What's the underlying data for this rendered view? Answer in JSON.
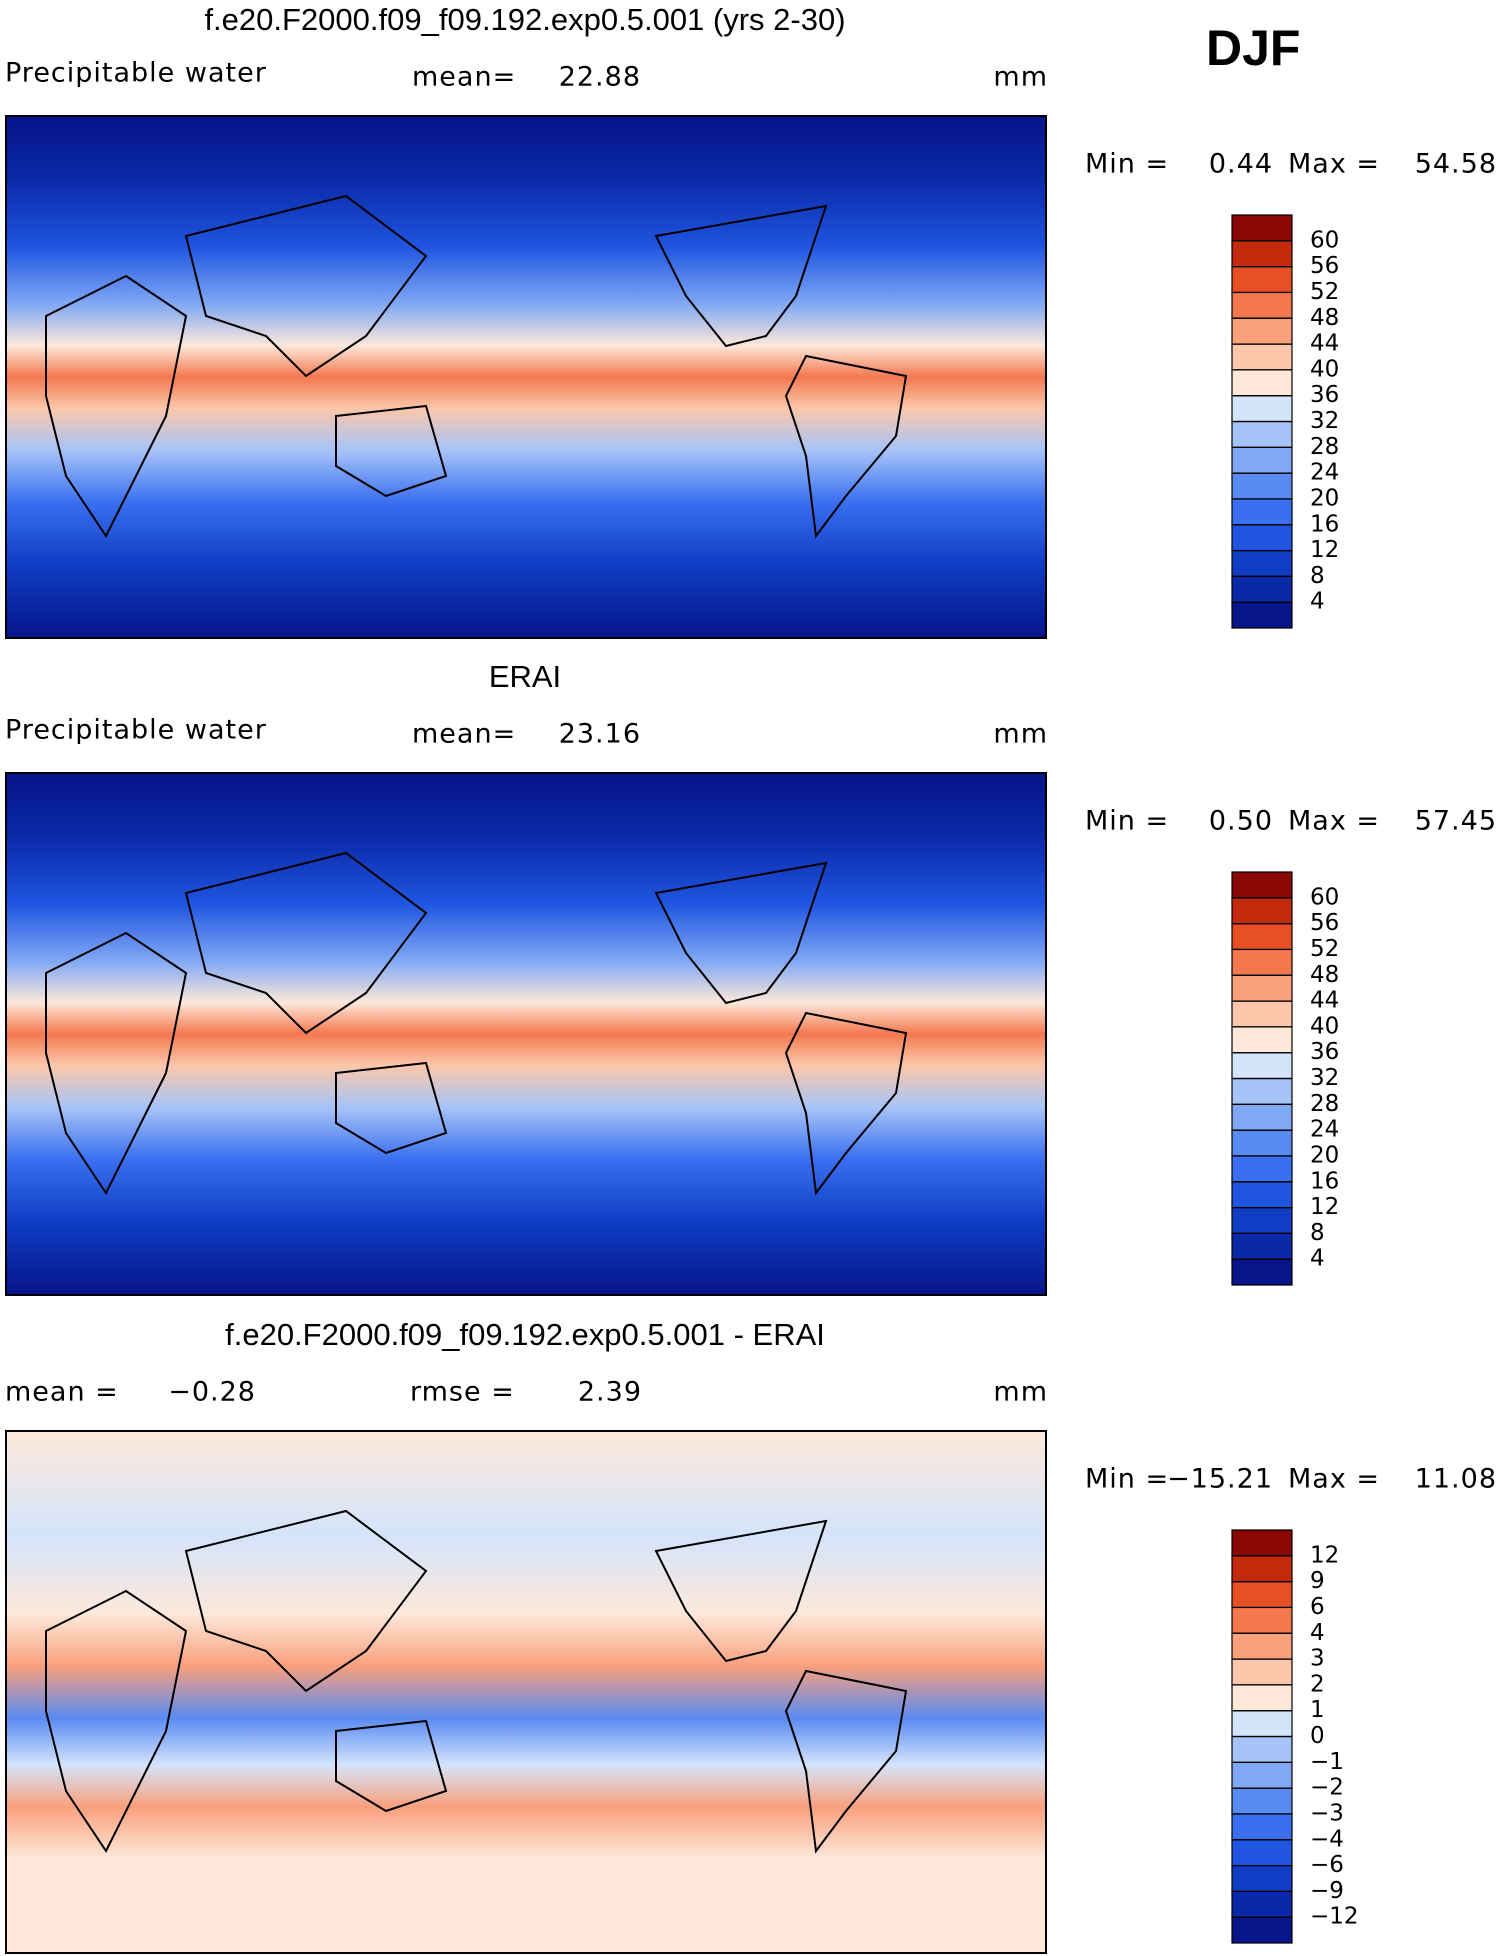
{
  "season": "DJF",
  "chart_data": [
    {
      "type": "contour-map",
      "title": "f.e20.F2000.f09_f09.192.exp0.5.001 (yrs 2-30)",
      "variable": "Precipitable water",
      "mean_label": "mean=",
      "mean": 22.88,
      "units": "mm",
      "min_label": "Min =",
      "min": 0.44,
      "max_label": "Max =",
      "max": 54.58,
      "levels": [
        4,
        8,
        12,
        16,
        20,
        24,
        28,
        32,
        36,
        40,
        44,
        48,
        52,
        56,
        60
      ],
      "colors": [
        "#08148a",
        "#0a29a8",
        "#0f3ec4",
        "#1f55e0",
        "#3a6fef",
        "#5a8bf2",
        "#80a8f5",
        "#a7c4f8",
        "#d4e4fb",
        "#fde8da",
        "#fcc7aa",
        "#f9a07c",
        "#f3784e",
        "#e65024",
        "#c42a0c",
        "#8a0904"
      ]
    },
    {
      "type": "contour-map",
      "title": "ERAI",
      "variable": "Precipitable water",
      "mean_label": "mean=",
      "mean": 23.16,
      "units": "mm",
      "min_label": "Min =",
      "min": {
        "value": 0.5,
        "label": "0.50"
      },
      "max_label": "Max =",
      "max": 57.45,
      "levels": [
        4,
        8,
        12,
        16,
        20,
        24,
        28,
        32,
        36,
        40,
        44,
        48,
        52,
        56,
        60
      ],
      "colors": [
        "#08148a",
        "#0a29a8",
        "#0f3ec4",
        "#1f55e0",
        "#3a6fef",
        "#5a8bf2",
        "#80a8f5",
        "#a7c4f8",
        "#d4e4fb",
        "#fde8da",
        "#fcc7aa",
        "#f9a07c",
        "#f3784e",
        "#e65024",
        "#c42a0c",
        "#8a0904"
      ]
    },
    {
      "type": "contour-map",
      "title": "f.e20.F2000.f09_f09.192.exp0.5.001 - ERAI",
      "mean_label": "mean =",
      "mean": {
        "value": -0.28,
        "label": "−0.28"
      },
      "rmse_label": "rmse =",
      "rmse": 2.39,
      "units": "mm",
      "min_label": "Min =",
      "min": {
        "value": -15.21,
        "label": "−15.21"
      },
      "max_label": "Max =",
      "max": 11.08,
      "levels": [
        {
          "value": -12,
          "label": "−12"
        },
        {
          "value": -9,
          "label": "−9"
        },
        {
          "value": -6,
          "label": "−6"
        },
        {
          "value": -4,
          "label": "−4"
        },
        {
          "value": -3,
          "label": "−3"
        },
        {
          "value": -2,
          "label": "−2"
        },
        {
          "value": -1,
          "label": "−1"
        },
        0,
        1,
        2,
        3,
        4,
        6,
        9,
        12
      ],
      "colors": [
        "#08148a",
        "#0a29a8",
        "#0f3ec4",
        "#1f55e0",
        "#3a6fef",
        "#5a8bf2",
        "#80a8f5",
        "#a7c4f8",
        "#d4e4fb",
        "#fde8da",
        "#fcc7aa",
        "#f9a07c",
        "#f3784e",
        "#e65024",
        "#c42a0c",
        "#8a0904"
      ]
    }
  ]
}
